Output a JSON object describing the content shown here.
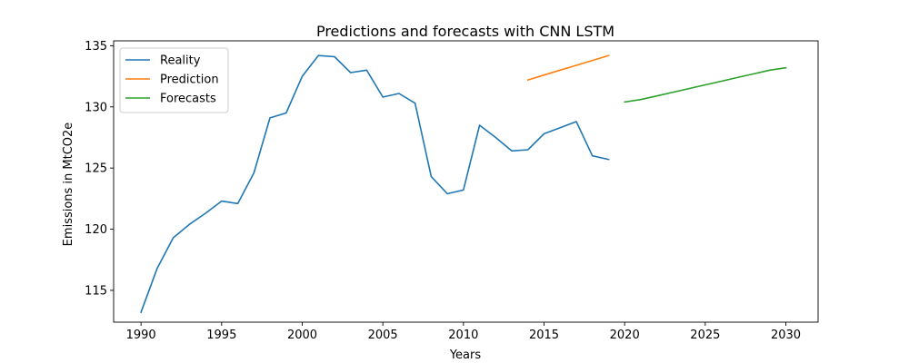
{
  "chart_data": {
    "type": "line",
    "title": "Predictions and forecasts with CNN LSTM",
    "xlabel": "Years",
    "ylabel": "Emissions in MtCO2e",
    "xlim": [
      1988.3,
      2032.0
    ],
    "ylim": [
      112.4,
      135.4
    ],
    "xticks": [
      1990,
      1995,
      2000,
      2005,
      2010,
      2015,
      2020,
      2025,
      2030
    ],
    "yticks": [
      115,
      120,
      125,
      130,
      135
    ],
    "grid": false,
    "legend_position": "top-left",
    "series": [
      {
        "name": "Reality",
        "color": "#1f77b4",
        "x": [
          1990,
          1991,
          1992,
          1993,
          1994,
          1995,
          1996,
          1997,
          1998,
          1999,
          2000,
          2001,
          2002,
          2003,
          2004,
          2005,
          2006,
          2007,
          2008,
          2009,
          2010,
          2011,
          2012,
          2013,
          2014,
          2015,
          2016,
          2017,
          2018,
          2019
        ],
        "y": [
          113.2,
          116.8,
          119.3,
          120.4,
          121.3,
          122.3,
          122.1,
          124.6,
          129.1,
          129.5,
          132.5,
          134.2,
          134.1,
          132.8,
          133.0,
          130.8,
          131.1,
          130.3,
          124.3,
          122.9,
          123.2,
          128.5,
          127.5,
          126.4,
          126.5,
          127.8,
          128.3,
          128.8,
          126.0,
          125.7
        ]
      },
      {
        "name": "Prediction",
        "color": "#ff7f0e",
        "x": [
          2014,
          2015,
          2016,
          2017,
          2018,
          2019
        ],
        "y": [
          132.2,
          132.6,
          133.0,
          133.4,
          133.8,
          134.2
        ]
      },
      {
        "name": "Forecasts",
        "color": "#2ca02c",
        "x": [
          2020,
          2021,
          2022,
          2023,
          2024,
          2025,
          2026,
          2027,
          2028,
          2029,
          2030
        ],
        "y": [
          130.4,
          130.6,
          130.9,
          131.2,
          131.5,
          131.8,
          132.1,
          132.4,
          132.7,
          133.0,
          133.2
        ]
      }
    ]
  }
}
